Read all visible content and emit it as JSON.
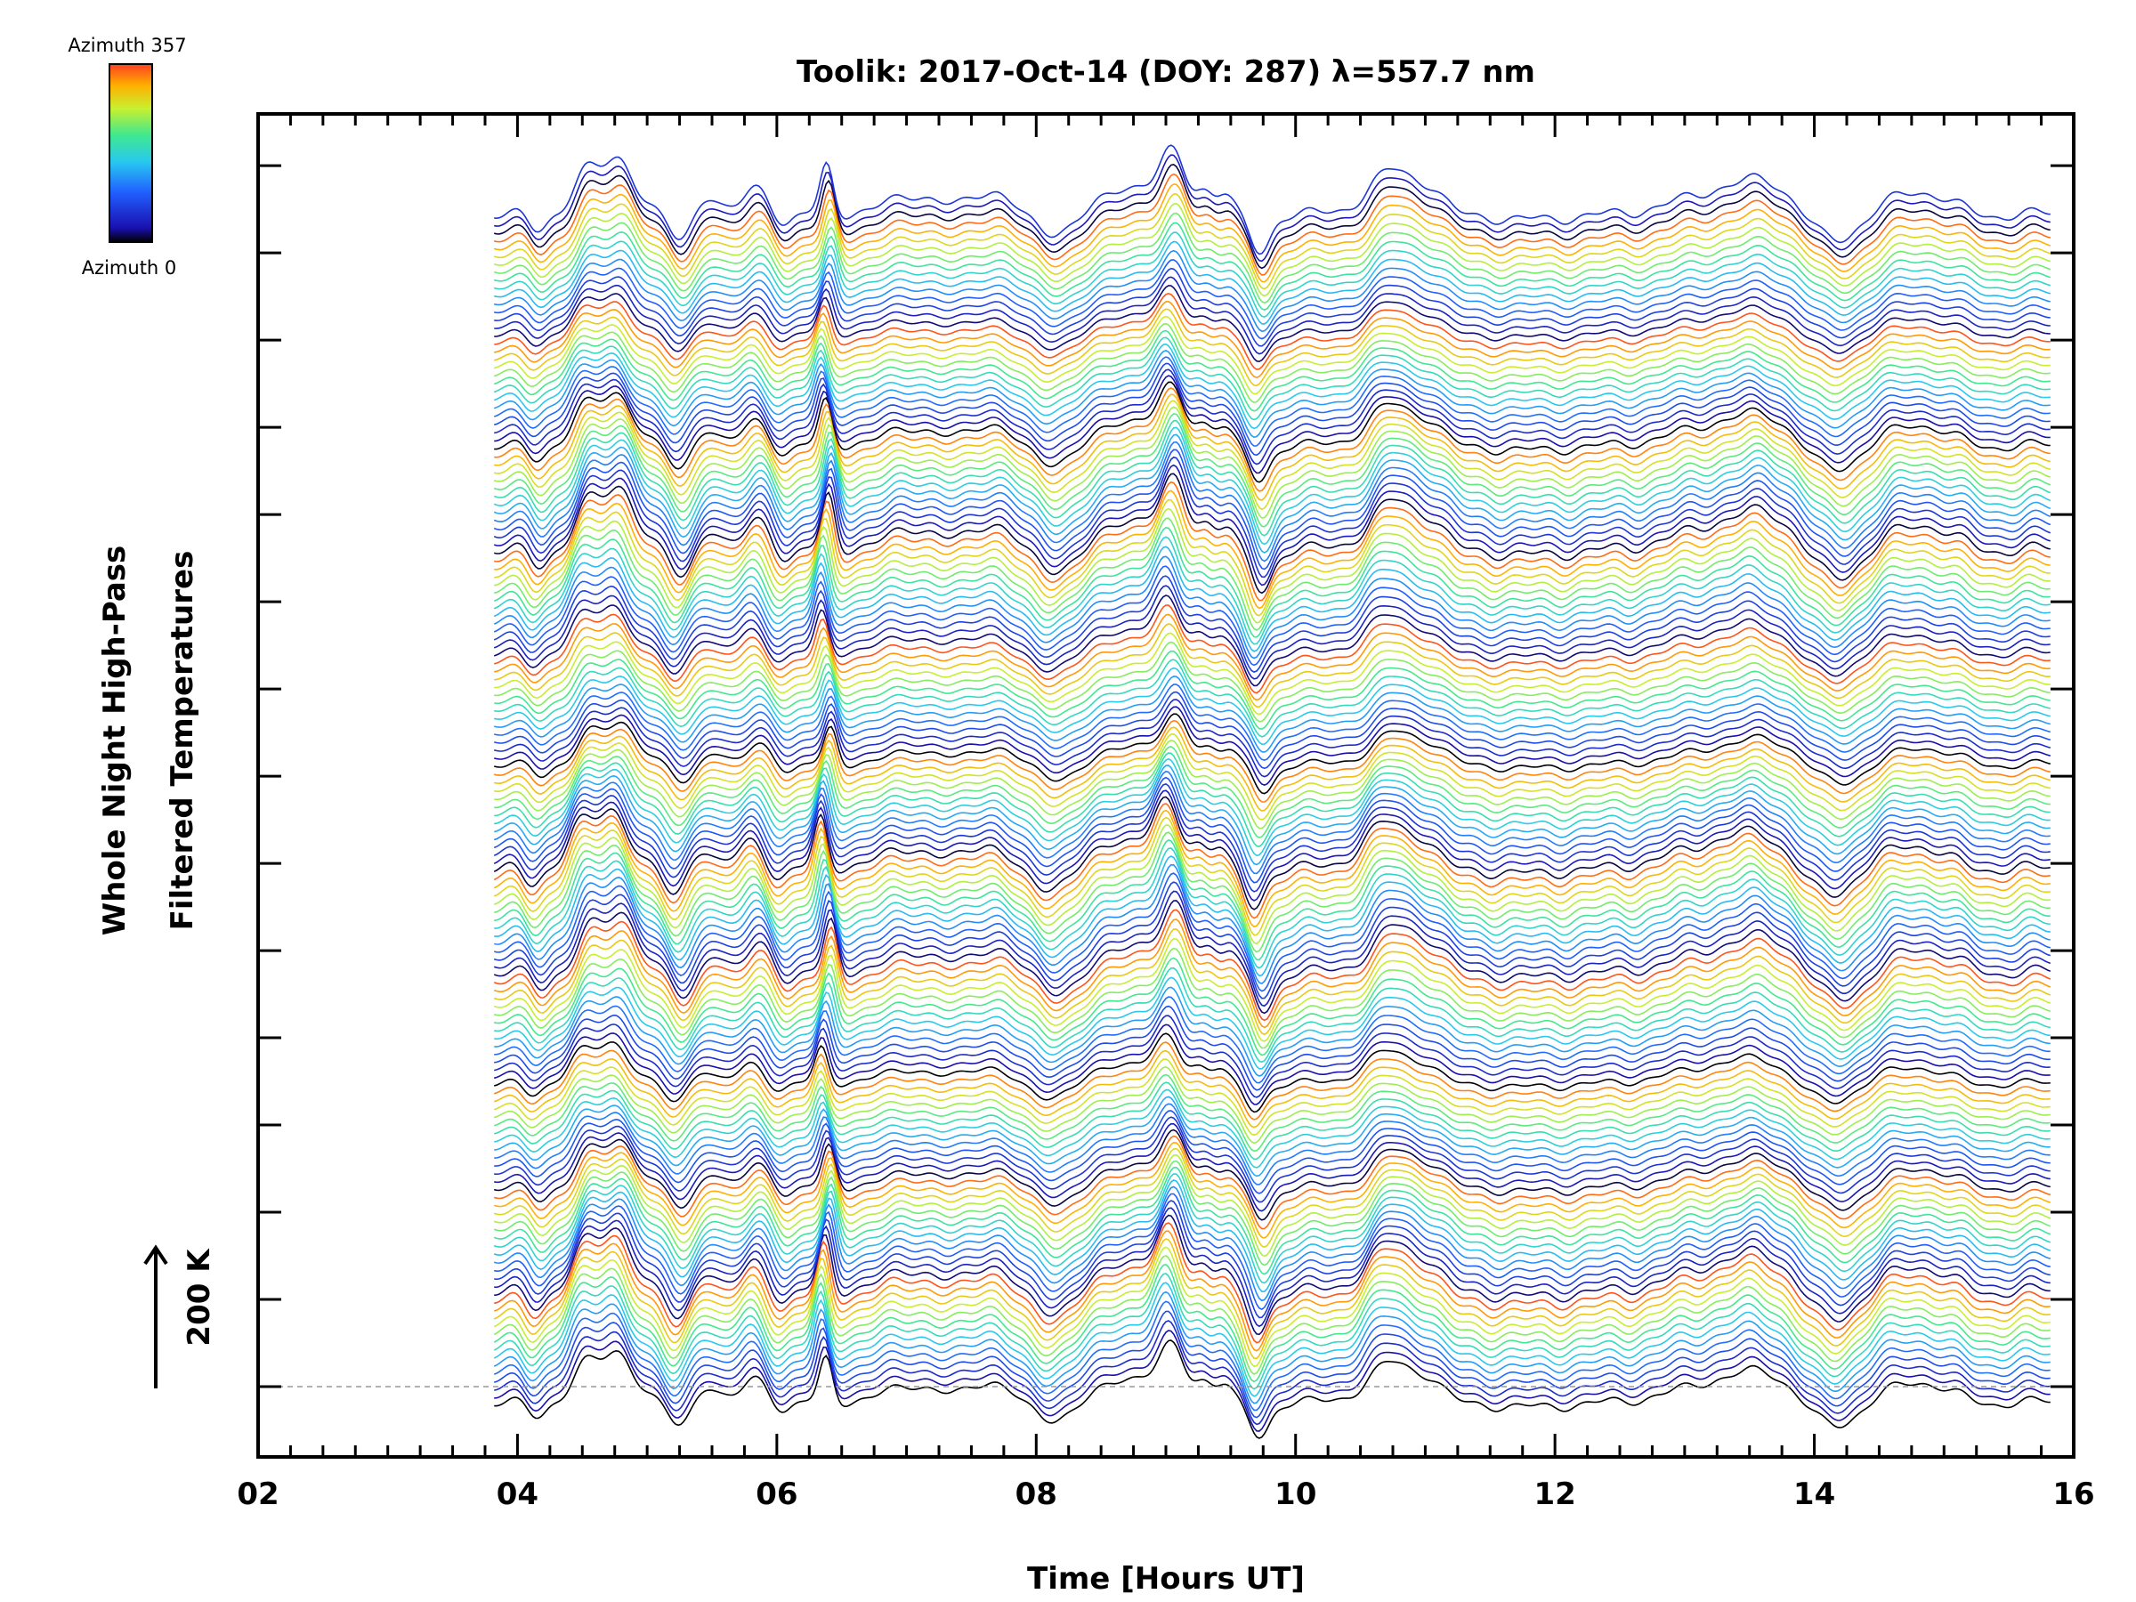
{
  "chart_data": {
    "type": "line",
    "title": "Toolik: 2017-Oct-14 (DOY: 287) λ=557.7 nm",
    "xlabel": "Time [Hours UT]",
    "ylabel_line1": "Whole Night High-Pass",
    "ylabel_line2": "Filtered Temperatures",
    "xlim": [
      2,
      16
    ],
    "x_ticks": [
      "02",
      "04",
      "06",
      "08",
      "10",
      "12",
      "14",
      "16"
    ],
    "x_tick_values": [
      2,
      4,
      6,
      8,
      10,
      12,
      14,
      16
    ],
    "time_range": [
      3.82,
      15.82
    ],
    "n_traces": 150,
    "scale_bar_label": "200 K",
    "baseline": "dashed",
    "colorbar": {
      "top_label": "Azimuth 357",
      "bottom_label": "Azimuth 0",
      "range": [
        0,
        357
      ],
      "colors": [
        "#000000",
        "#1a10b0",
        "#2060ff",
        "#28c8f0",
        "#40e890",
        "#c8f030",
        "#ffb000",
        "#ff4020"
      ]
    },
    "features": [
      {
        "t": 4.15,
        "amp": -0.8,
        "w": 0.07
      },
      {
        "t": 4.52,
        "amp": 1.8,
        "w": 0.1
      },
      {
        "t": 4.78,
        "amp": 2.5,
        "w": 0.12
      },
      {
        "t": 5.25,
        "amp": -1.3,
        "w": 0.08
      },
      {
        "t": 5.45,
        "amp": 0.9,
        "w": 0.08
      },
      {
        "t": 5.85,
        "amp": 1.2,
        "w": 0.1
      },
      {
        "t": 6.05,
        "amp": -0.6,
        "w": 0.07
      },
      {
        "t": 6.38,
        "amp": 2.2,
        "w": 0.05
      },
      {
        "t": 7.05,
        "amp": 0.9,
        "w": 0.18
      },
      {
        "t": 7.65,
        "amp": 1.1,
        "w": 0.15
      },
      {
        "t": 8.1,
        "amp": -0.9,
        "w": 0.15
      },
      {
        "t": 8.75,
        "amp": 1.3,
        "w": 0.2
      },
      {
        "t": 9.05,
        "amp": 2.4,
        "w": 0.1
      },
      {
        "t": 9.3,
        "amp": 1.0,
        "w": 0.07
      },
      {
        "t": 9.45,
        "amp": 0.9,
        "w": 0.06
      },
      {
        "t": 9.72,
        "amp": -1.8,
        "w": 0.08
      },
      {
        "t": 10.75,
        "amp": 2.0,
        "w": 0.18
      },
      {
        "t": 11.05,
        "amp": 0.8,
        "w": 0.1
      },
      {
        "t": 11.9,
        "amp": -0.3,
        "w": 0.4
      },
      {
        "t": 12.3,
        "amp": 0.1,
        "w": 0.3
      },
      {
        "t": 13.25,
        "amp": 1.0,
        "w": 0.3
      },
      {
        "t": 13.65,
        "amp": 1.1,
        "w": 0.2
      },
      {
        "t": 14.15,
        "amp": -1.3,
        "w": 0.18
      },
      {
        "t": 14.8,
        "amp": 1.0,
        "w": 0.25
      },
      {
        "t": 15.3,
        "amp": -0.2,
        "w": 0.15
      }
    ]
  }
}
